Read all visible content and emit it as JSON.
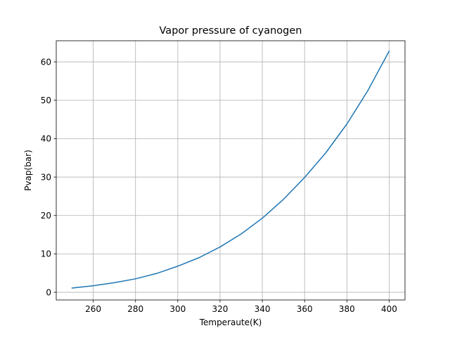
{
  "chart_data": {
    "type": "line",
    "title": "Vapor pressure of cyanogen",
    "xlabel": "Temperaute(K)",
    "ylabel": "Pvap(bar)",
    "xlim": [
      242.5,
      407.5
    ],
    "ylim": [
      -2.0,
      65.5
    ],
    "xticks": [
      260,
      280,
      300,
      320,
      340,
      360,
      380,
      400
    ],
    "yticks": [
      0,
      10,
      20,
      30,
      40,
      50,
      60
    ],
    "grid": true,
    "legend": "none",
    "series": [
      {
        "color": "#1f77b4",
        "x": [
          250,
          260,
          270,
          280,
          290,
          300,
          310,
          320,
          330,
          340,
          350,
          360,
          370,
          380,
          390,
          400
        ],
        "y": [
          1.1,
          1.7,
          2.5,
          3.5,
          4.9,
          6.8,
          9.0,
          11.8,
          15.2,
          19.3,
          24.2,
          29.9,
          36.3,
          43.8,
          52.6,
          62.8
        ]
      }
    ]
  }
}
